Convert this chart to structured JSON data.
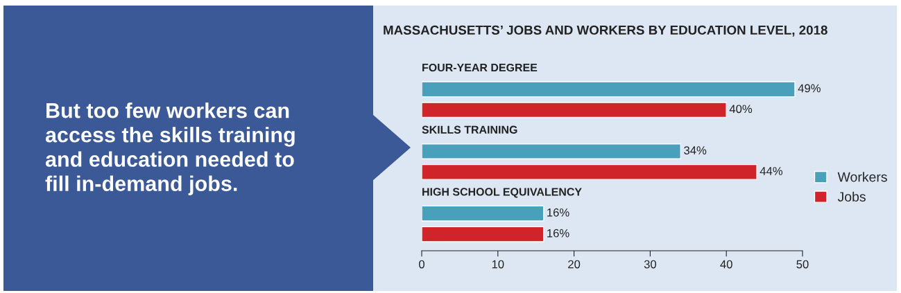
{
  "chart_data": {
    "type": "bar",
    "orientation": "horizontal",
    "title": "MASSACHUSETTS’ JOBS AND WORKERS BY EDUCATION LEVEL, 2018",
    "annotations": [
      "But too few workers can\naccess the skills training\nand education needed to\nfill in-demand jobs."
    ],
    "categories": [
      "FOUR-YEAR DEGREE",
      "SKILLS TRAINING",
      "HIGH SCHOOL EQUIVALENCY"
    ],
    "series": [
      {
        "name": "Workers",
        "color": "#4a9fba",
        "values": [
          49,
          34,
          16
        ],
        "value_labels": [
          "49%",
          "34%",
          "16%"
        ]
      },
      {
        "name": "Jobs",
        "color": "#d0242b",
        "values": [
          40,
          44,
          16
        ],
        "value_labels": [
          "40%",
          "44%",
          "16%"
        ]
      }
    ],
    "xlim": [
      0,
      50
    ],
    "xticks": [
      0,
      10,
      20,
      30,
      40,
      50
    ],
    "grid": false,
    "legend": "right"
  }
}
